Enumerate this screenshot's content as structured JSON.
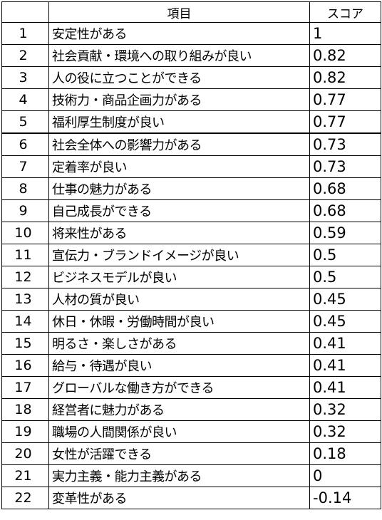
{
  "table": {
    "header": {
      "rank": "",
      "item": "項目",
      "score": "スコア"
    },
    "rows": [
      {
        "rank": "1",
        "item": "安定性がある",
        "score": "1"
      },
      {
        "rank": "2",
        "item": "社会貢献・環境への取り組みが良い",
        "score": "0.82"
      },
      {
        "rank": "3",
        "item": "人の役に立つことができる",
        "score": "0.82"
      },
      {
        "rank": "4",
        "item": "技術力・商品企画力がある",
        "score": "0.77"
      },
      {
        "rank": "5",
        "item": "福利厚生制度が良い",
        "score": "0.77"
      },
      {
        "rank": "6",
        "item": "社会全体への影響力がある",
        "score": "0.73"
      },
      {
        "rank": "7",
        "item": "定着率が良い",
        "score": "0.73"
      },
      {
        "rank": "8",
        "item": "仕事の魅力がある",
        "score": "0.68"
      },
      {
        "rank": "9",
        "item": "自己成長ができる",
        "score": "0.68"
      },
      {
        "rank": "10",
        "item": "将来性がある",
        "score": "0.59"
      },
      {
        "rank": "11",
        "item": "宣伝力・ブランドイメージが良い",
        "score": "0.5"
      },
      {
        "rank": "12",
        "item": "ビジネスモデルが良い",
        "score": "0.5"
      },
      {
        "rank": "13",
        "item": "人材の質が良い",
        "score": "0.45"
      },
      {
        "rank": "14",
        "item": "休日・休暇・労働時間が良い",
        "score": "0.45"
      },
      {
        "rank": "15",
        "item": "明るさ・楽しさがある",
        "score": "0.41"
      },
      {
        "rank": "16",
        "item": "給与・待遇が良い",
        "score": "0.41"
      },
      {
        "rank": "17",
        "item": "グローバルな働き方ができる",
        "score": "0.41"
      },
      {
        "rank": "18",
        "item": "経営者に魅力がある",
        "score": "0.32"
      },
      {
        "rank": "19",
        "item": "職場の人間関係が良い",
        "score": "0.32"
      },
      {
        "rank": "20",
        "item": "女性が活躍できる",
        "score": "0.18"
      },
      {
        "rank": "21",
        "item": "実力主義・能力主義がある",
        "score": "0"
      },
      {
        "rank": "22",
        "item": "変革性がある",
        "score": "-0.14"
      }
    ]
  }
}
